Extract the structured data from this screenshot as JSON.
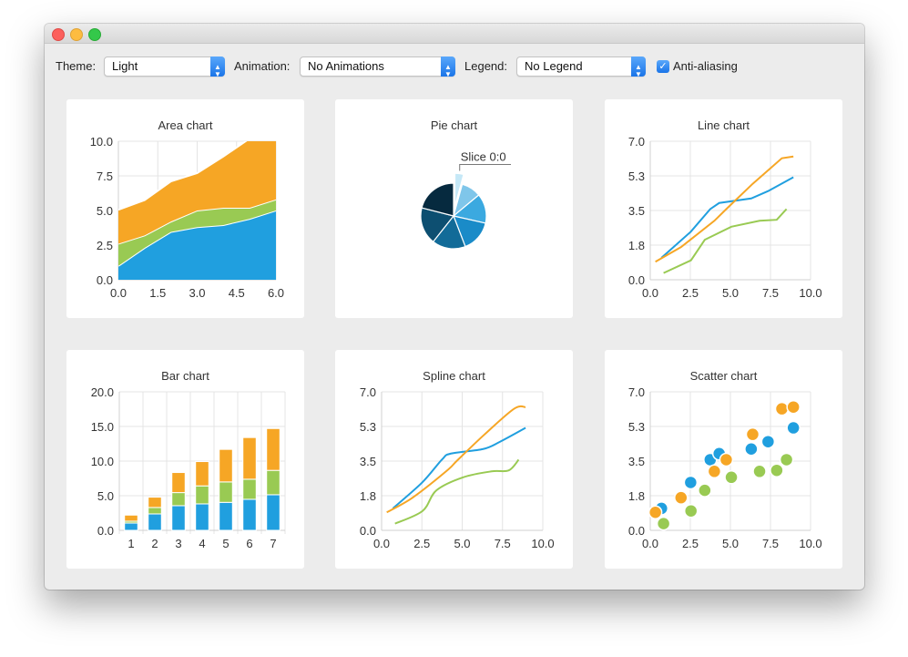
{
  "toolbar": {
    "theme_label": "Theme:",
    "theme_value": "Light",
    "animation_label": "Animation:",
    "animation_value": "No Animations",
    "legend_label": "Legend:",
    "legend_value": "No Legend",
    "antialiasing_label": "Anti-aliasing",
    "antialiasing_checked": true
  },
  "colors": {
    "series": [
      "#209fdf",
      "#99ca53",
      "#f6a625"
    ],
    "pie": [
      "#c5e8f7",
      "#7fc6ea",
      "#3ba9e0",
      "#1a8bc8",
      "#126b98",
      "#0d4f71",
      "#062a3f"
    ],
    "grid": "#e4e4e4"
  },
  "chart_data": [
    {
      "type": "area",
      "title": "Area chart",
      "x": [
        0,
        1,
        2,
        3,
        4,
        5,
        6
      ],
      "series": [
        {
          "upper": [
            1.0,
            2.3,
            3.45,
            3.8,
            3.95,
            4.4,
            5.0
          ]
        },
        {
          "upper": [
            2.6,
            3.2,
            4.2,
            5.0,
            5.2,
            5.2,
            5.8
          ]
        },
        {
          "upper": [
            5.05,
            5.75,
            7.1,
            7.7,
            8.9,
            10.2,
            10.9
          ]
        }
      ],
      "xlim": [
        0,
        6
      ],
      "ylim": [
        0,
        10
      ],
      "xticks": [
        "0.0",
        "1.5",
        "3.0",
        "4.5",
        "6.0"
      ],
      "yticks": [
        "0.0",
        "2.5",
        "5.0",
        "7.5",
        "10.0"
      ],
      "grid": true
    },
    {
      "type": "pie",
      "title": "Pie chart",
      "values": [
        1.05,
        2.37,
        3.56,
        3.82,
        4.04,
        4.48,
        5.14
      ],
      "exploded": 0,
      "label": "Slice 0:0"
    },
    {
      "type": "line",
      "title": "Line chart",
      "series": [
        {
          "points": [
            [
              0.7,
              1.11
            ],
            [
              2.52,
              2.42
            ],
            [
              3.74,
              3.57
            ],
            [
              4.3,
              3.88
            ],
            [
              6.3,
              4.11
            ],
            [
              7.35,
              4.48
            ],
            [
              8.93,
              5.18
            ]
          ]
        },
        {
          "points": [
            [
              0.83,
              0.34
            ],
            [
              2.54,
              0.98
            ],
            [
              3.4,
              2.02
            ],
            [
              5.06,
              2.68
            ],
            [
              6.82,
              2.98
            ],
            [
              7.89,
              3.03
            ],
            [
              8.5,
              3.57
            ]
          ]
        },
        {
          "points": [
            [
              0.32,
              0.91
            ],
            [
              1.92,
              1.65
            ],
            [
              4.0,
              2.98
            ],
            [
              4.74,
              3.57
            ],
            [
              6.39,
              4.85
            ],
            [
              8.21,
              6.14
            ],
            [
              8.93,
              6.23
            ]
          ]
        }
      ],
      "xlim": [
        0,
        10
      ],
      "ylim": [
        0,
        7
      ],
      "xticks": [
        "0.0",
        "2.5",
        "5.0",
        "7.5",
        "10.0"
      ],
      "yticks": [
        "0.0",
        "1.8",
        "3.5",
        "5.3",
        "7.0"
      ],
      "grid": true
    },
    {
      "type": "bar",
      "title": "Bar chart",
      "stacked": true,
      "categories": [
        "1",
        "2",
        "3",
        "4",
        "5",
        "6",
        "7"
      ],
      "series": [
        {
          "values": [
            1.05,
            2.37,
            3.56,
            3.82,
            4.04,
            4.48,
            5.14
          ]
        },
        {
          "values": [
            0.27,
            0.93,
            1.89,
            2.6,
            2.95,
            2.9,
            3.52
          ]
        },
        {
          "values": [
            0.88,
            1.49,
            2.9,
            3.51,
            4.7,
            6.02,
            6.04
          ]
        }
      ],
      "ylim": [
        0,
        20
      ],
      "yticks": [
        "0.0",
        "5.0",
        "10.0",
        "15.0",
        "20.0"
      ],
      "grid": true
    },
    {
      "type": "spline",
      "title": "Spline chart",
      "series": [
        {
          "points": [
            [
              0.7,
              1.11
            ],
            [
              2.52,
              2.42
            ],
            [
              3.74,
              3.57
            ],
            [
              4.3,
              3.88
            ],
            [
              6.3,
              4.11
            ],
            [
              7.35,
              4.48
            ],
            [
              8.93,
              5.18
            ]
          ]
        },
        {
          "points": [
            [
              0.83,
              0.34
            ],
            [
              2.54,
              0.98
            ],
            [
              3.4,
              2.02
            ],
            [
              5.06,
              2.68
            ],
            [
              6.82,
              2.98
            ],
            [
              7.89,
              3.03
            ],
            [
              8.5,
              3.57
            ]
          ]
        },
        {
          "points": [
            [
              0.32,
              0.91
            ],
            [
              1.92,
              1.65
            ],
            [
              4.0,
              2.98
            ],
            [
              4.74,
              3.57
            ],
            [
              6.39,
              4.85
            ],
            [
              8.21,
              6.14
            ],
            [
              8.93,
              6.23
            ]
          ]
        }
      ],
      "xlim": [
        0,
        10
      ],
      "ylim": [
        0,
        7
      ],
      "xticks": [
        "0.0",
        "2.5",
        "5.0",
        "7.5",
        "10.0"
      ],
      "yticks": [
        "0.0",
        "1.8",
        "3.5",
        "5.3",
        "7.0"
      ],
      "grid": true
    },
    {
      "type": "scatter",
      "title": "Scatter chart",
      "series": [
        {
          "points": [
            [
              0.7,
              1.11
            ],
            [
              2.52,
              2.42
            ],
            [
              3.74,
              3.57
            ],
            [
              4.3,
              3.88
            ],
            [
              6.3,
              4.11
            ],
            [
              7.35,
              4.48
            ],
            [
              8.93,
              5.18
            ]
          ]
        },
        {
          "points": [
            [
              0.83,
              0.34
            ],
            [
              2.54,
              0.98
            ],
            [
              3.4,
              2.02
            ],
            [
              5.06,
              2.68
            ],
            [
              6.82,
              2.98
            ],
            [
              7.89,
              3.03
            ],
            [
              8.5,
              3.57
            ]
          ]
        },
        {
          "points": [
            [
              0.32,
              0.91
            ],
            [
              1.92,
              1.65
            ],
            [
              4.0,
              2.98
            ],
            [
              4.74,
              3.57
            ],
            [
              6.39,
              4.85
            ],
            [
              8.21,
              6.14
            ],
            [
              8.93,
              6.23
            ]
          ]
        }
      ],
      "xlim": [
        0,
        10
      ],
      "ylim": [
        0,
        7
      ],
      "xticks": [
        "0.0",
        "2.5",
        "5.0",
        "7.5",
        "10.0"
      ],
      "yticks": [
        "0.0",
        "1.8",
        "3.5",
        "5.3",
        "7.0"
      ],
      "grid": true
    }
  ]
}
